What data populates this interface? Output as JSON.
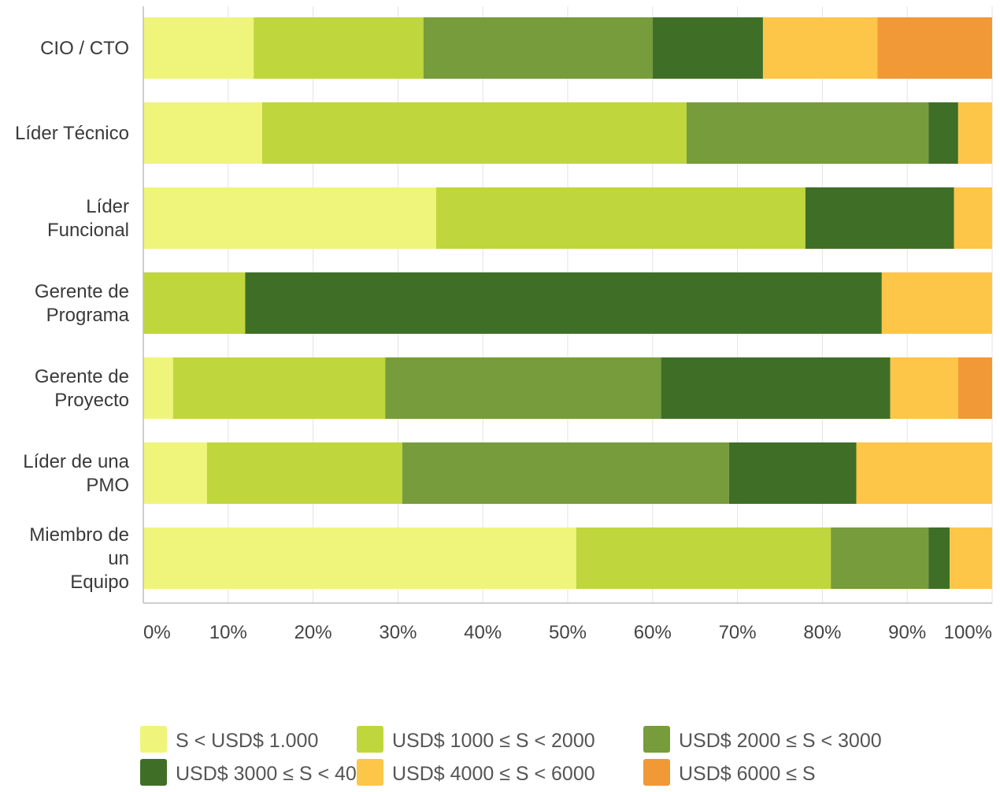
{
  "chart_data": {
    "type": "bar",
    "orientation": "horizontal",
    "stacked": "percent",
    "title": "",
    "xlabel": "",
    "ylabel": "",
    "xlim": [
      0,
      100
    ],
    "x_ticks": [
      "0%",
      "10%",
      "20%",
      "30%",
      "40%",
      "50%",
      "60%",
      "70%",
      "80%",
      "90%",
      "100%"
    ],
    "grid": "vertical",
    "legend_position": "bottom",
    "categories": [
      [
        "CIO / CTO"
      ],
      [
        "Líder Técnico"
      ],
      [
        "Líder",
        "Funcional"
      ],
      [
        "Gerente de",
        "Programa"
      ],
      [
        "Gerente de",
        "Proyecto"
      ],
      [
        "Líder de una",
        "PMO"
      ],
      [
        "Miembro de",
        "un",
        "Equipo"
      ]
    ],
    "series": [
      {
        "name": "S < USD$ 1.000",
        "color": "#eff57a",
        "values": [
          13.0,
          14.0,
          34.5,
          0.0,
          3.5,
          7.5,
          51.0
        ]
      },
      {
        "name": "USD$ 1000 ≤ S < 2000",
        "color": "#c0d63d",
        "values": [
          20.0,
          50.0,
          43.5,
          12.0,
          25.0,
          23.0,
          30.0
        ]
      },
      {
        "name": "USD$ 2000 ≤ S < 3000",
        "color": "#779c3b",
        "values": [
          27.0,
          28.5,
          0.0,
          0.0,
          32.5,
          38.5,
          11.5
        ]
      },
      {
        "name": "USD$ 3000 ≤ S < 4000",
        "color": "#3f6f27",
        "values": [
          13.0,
          3.5,
          17.5,
          75.0,
          27.0,
          15.0,
          2.5
        ]
      },
      {
        "name": "USD$ 4000 ≤ S < 6000",
        "color": "#fdc648",
        "values": [
          13.5,
          4.0,
          4.5,
          13.0,
          8.0,
          16.0,
          5.0
        ]
      },
      {
        "name": "USD$ 6000 ≤ S",
        "color": "#f19936",
        "values": [
          13.5,
          0.0,
          0.0,
          0.0,
          4.0,
          0.0,
          0.0
        ]
      }
    ]
  }
}
